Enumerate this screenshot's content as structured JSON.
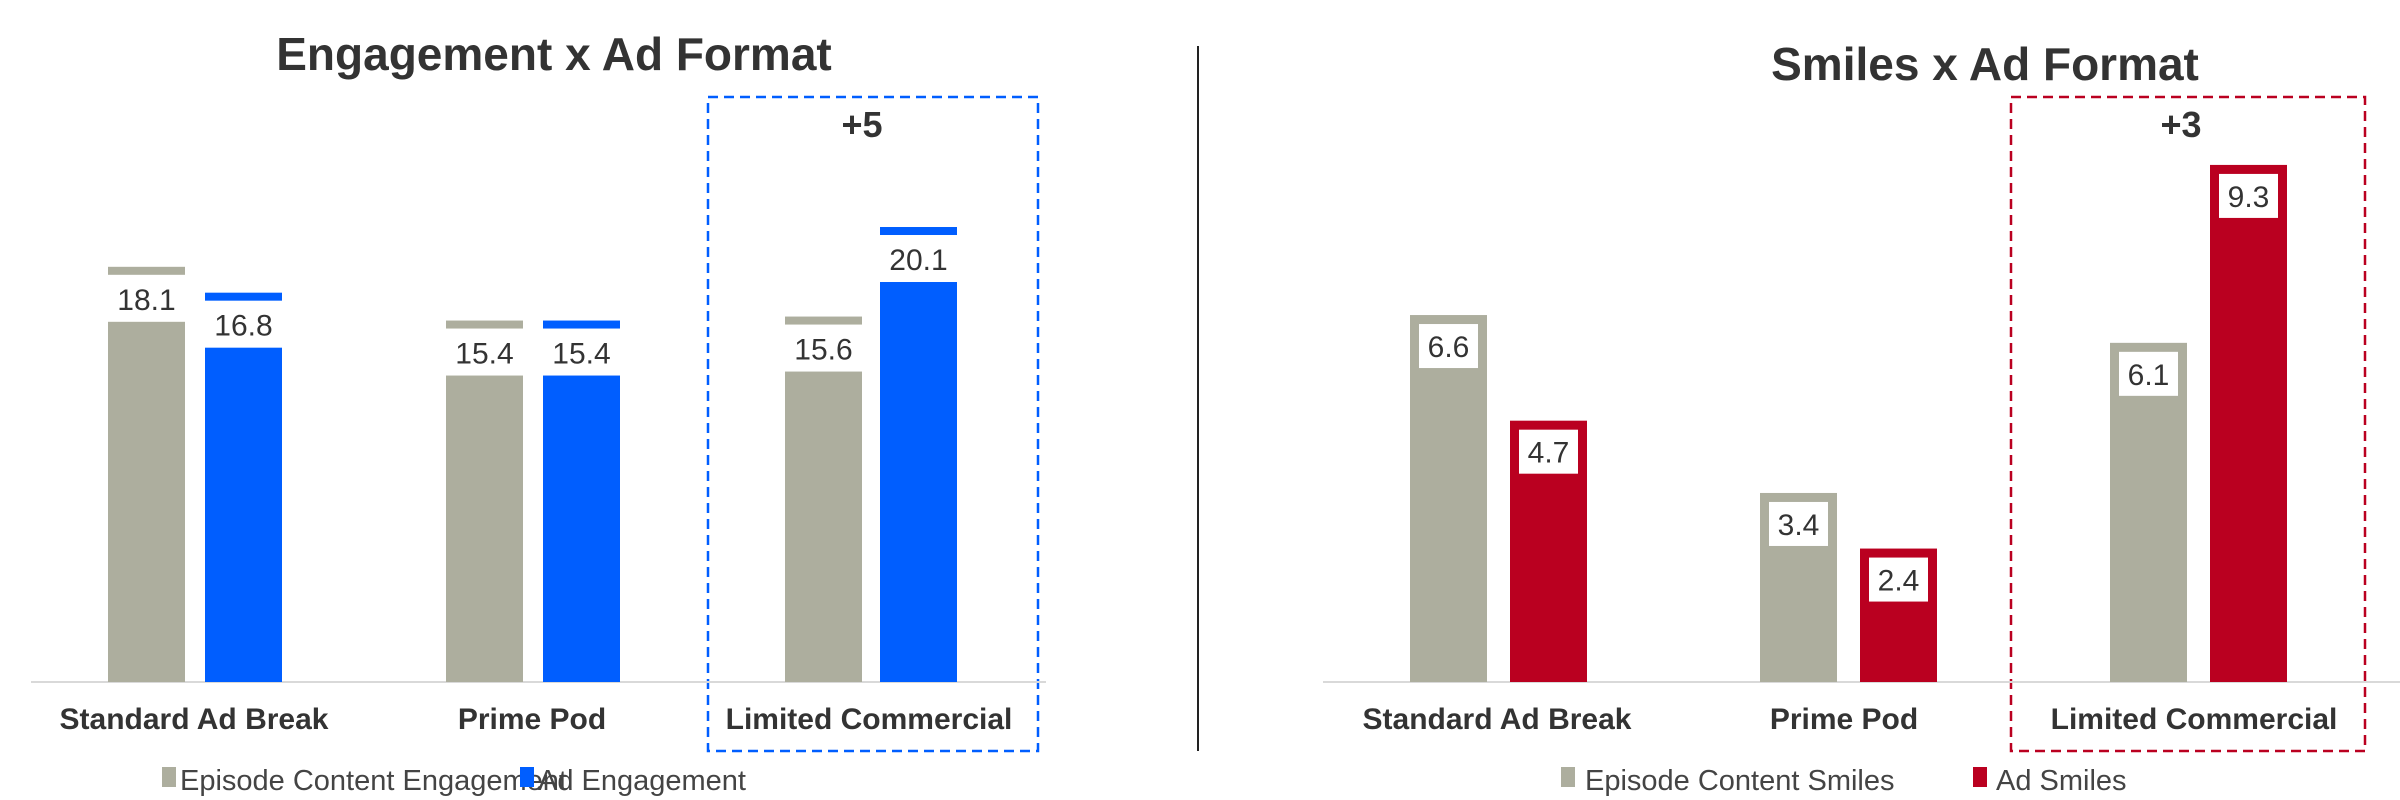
{
  "colors": {
    "episode": "#ADAE9E",
    "ad_blue": "#005EFF",
    "ad_red": "#BA0020",
    "text": "#333333",
    "axis": "#D9D9D9"
  },
  "chart_data": [
    {
      "type": "bar",
      "title": "Engagement x Ad Format",
      "categories": [
        "Standard Ad Break",
        "Prime Pod",
        "Limited Commercial"
      ],
      "series": [
        {
          "name": "Episode Content Engagement",
          "values": [
            18.1,
            15.4,
            15.6
          ],
          "labels": [
            "18.1",
            "15.4",
            "15.6"
          ],
          "color": "#ADAE9E"
        },
        {
          "name": "Ad Engagement",
          "values": [
            16.8,
            15.4,
            20.1
          ],
          "labels": [
            "16.8",
            "15.4",
            "20.1"
          ],
          "color": "#005EFF"
        }
      ],
      "highlight": {
        "category": "Limited Commercial",
        "annotation": "+5",
        "style": "dashed",
        "color": "#005EFF"
      },
      "legend": "bottom",
      "grid": false,
      "ylim": [
        0,
        22
      ]
    },
    {
      "type": "bar",
      "title": "Smiles x Ad Format",
      "categories": [
        "Standard Ad Break",
        "Prime Pod",
        "Limited Commercial"
      ],
      "series": [
        {
          "name": "Episode Content Smiles",
          "values": [
            6.6,
            3.4,
            6.1
          ],
          "labels": [
            "6.6",
            "3.4",
            "6.1"
          ],
          "color": "#ADAE9E"
        },
        {
          "name": "Ad Smiles",
          "values": [
            4.7,
            2.4,
            9.3
          ],
          "labels": [
            "4.7",
            "2.4",
            "9.3"
          ],
          "color": "#BA0020"
        }
      ],
      "highlight": {
        "category": "Limited Commercial",
        "annotation": "+3",
        "style": "dashed",
        "color": "#BA0020"
      },
      "legend": "bottom",
      "grid": false,
      "ylim": [
        0,
        10
      ]
    }
  ]
}
